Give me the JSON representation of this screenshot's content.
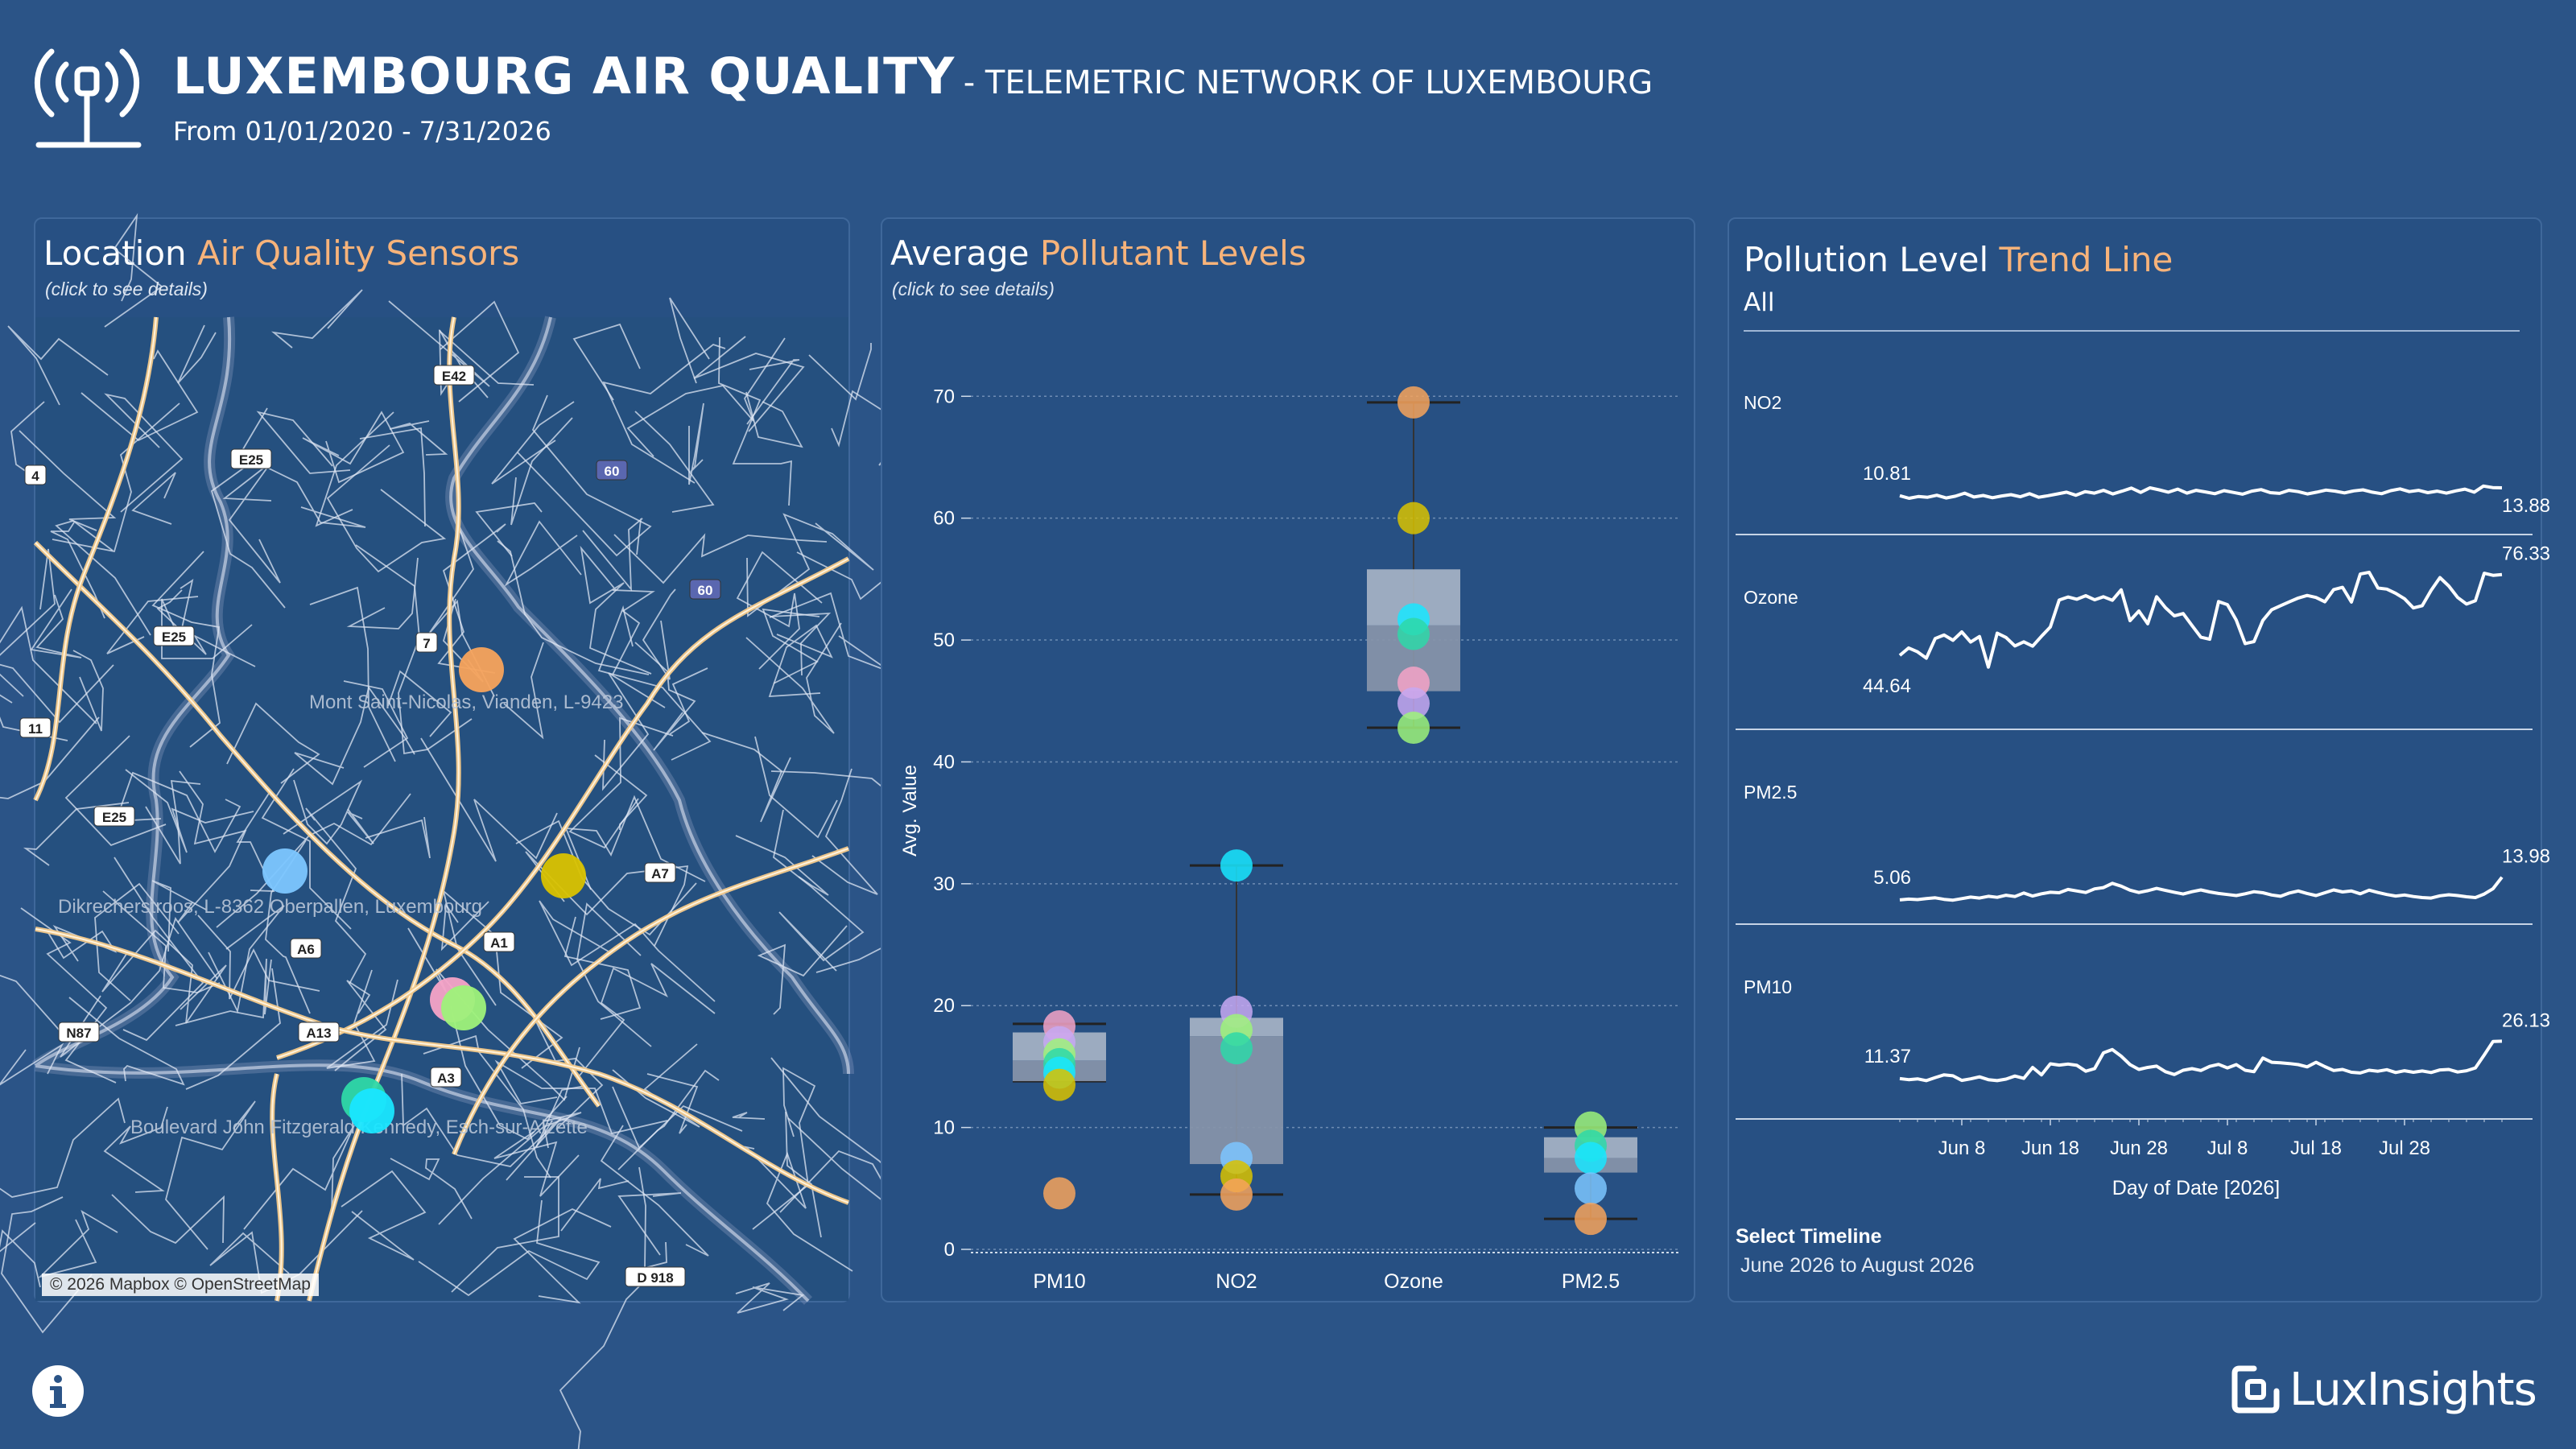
{
  "header": {
    "title": "LUXEMBOURG AIR QUALITY",
    "subtitle": "- TELEMETRIC NETWORK OF LUXEMBOURG",
    "date_range": "From 01/01/2020 - 7/31/2026",
    "icon": "antenna-broadcast-icon"
  },
  "map_panel": {
    "title_a": "Location",
    "title_b": "Air Quality Sensors",
    "hint": "(click to see details)",
    "labels": [
      "Mont Saint-Nicolas, Vianden, L-9423",
      "Dikrecherstroos, L-8362 Oberpallen, Luxembourg",
      "Boulevard John Fitzgerald Kennedy, Esch-sur-Alzette"
    ],
    "road_shields": [
      "E42",
      "E25",
      "60",
      "60",
      "E25",
      "7",
      "E25",
      "A7",
      "A6",
      "A1",
      "N87",
      "A13",
      "A3",
      "D 918",
      "4",
      "11"
    ],
    "attribution": "© 2026 Mapbox © OpenStreetMap"
  },
  "box_panel": {
    "title_a": "Average",
    "title_b": "Pollutant Levels",
    "hint": "(click to see details)"
  },
  "trend_panel": {
    "title_a": "Pollution Level",
    "title_b": "Trend Line",
    "filter_value": "All",
    "select_label": "Select Timeline",
    "select_value": "June 2026 to August 2026"
  },
  "footer": {
    "logo_text": "LuxInsights",
    "info_icon": "info-icon"
  },
  "colors": {
    "background": "#2b5487",
    "accent": "#f7b37a",
    "sensor_colors": [
      "#f7a35c",
      "#d9c200",
      "#7cc6ff",
      "#f5a3c7",
      "#9ef27a",
      "#19e6ff",
      "#2ed8a8",
      "#c7a8f2"
    ]
  },
  "chart_data": [
    {
      "type": "scatter",
      "title": "Location Air Quality Sensors",
      "description_values": "sensor markers on map",
      "series": [
        {
          "name": "",
          "color": "#f7a35c",
          "values": [
            1
          ]
        },
        {
          "name": "",
          "color": "#d9c200",
          "values": [
            1
          ]
        },
        {
          "name": "",
          "color": "#7cc6ff",
          "values": [
            1
          ]
        },
        {
          "name": "",
          "color": "#f5a3c7",
          "values": [
            1
          ]
        },
        {
          "name": "",
          "color": "#9ef27a",
          "values": [
            1
          ]
        },
        {
          "name": "",
          "color": "#2ed8a8",
          "values": [
            1
          ]
        },
        {
          "name": "",
          "color": "#19e6ff",
          "values": [
            1
          ]
        }
      ]
    },
    {
      "type": "box",
      "title": "Average Pollutant Levels",
      "ylabel": "Avg. Value",
      "ylim": [
        0,
        72
      ],
      "yticks": [
        0,
        10,
        20,
        30,
        40,
        50,
        60,
        70
      ],
      "categories": [
        "PM10",
        "NO2",
        "Ozone",
        "PM2.5"
      ],
      "boxes": [
        {
          "q1": 13.8,
          "median": 15.5,
          "q3": 17.8,
          "whisker_low": 13.8,
          "whisker_high": 18.5
        },
        {
          "q1": 7.0,
          "median": 17.5,
          "q3": 19.0,
          "whisker_low": 4.5,
          "whisker_high": 31.5
        },
        {
          "q1": 45.8,
          "median": 51.2,
          "q3": 55.8,
          "whisker_low": 42.8,
          "whisker_high": 69.5
        },
        {
          "q1": 6.3,
          "median": 7.5,
          "q3": 9.2,
          "whisker_low": 2.5,
          "whisker_high": 10.0
        }
      ],
      "points": [
        {
          "category": "PM10",
          "values": [
            18.3,
            17.0,
            16.0,
            15.2,
            14.5,
            13.5,
            4.6
          ],
          "colors": [
            "#f5a3c7",
            "#c7a8f2",
            "#9ef27a",
            "#2ed8a8",
            "#19e6ff",
            "#d9c200",
            "#f7a35c"
          ]
        },
        {
          "category": "NO2",
          "values": [
            31.5,
            19.5,
            18.0,
            16.5,
            7.5,
            6.0,
            4.5
          ],
          "colors": [
            "#19e6ff",
            "#c7a8f2",
            "#9ef27a",
            "#2ed8a8",
            "#7cc6ff",
            "#d9c200",
            "#f7a35c"
          ]
        },
        {
          "category": "Ozone",
          "values": [
            69.5,
            60.0,
            51.7,
            50.5,
            46.5,
            44.8,
            42.8
          ],
          "colors": [
            "#f7a35c",
            "#d9c200",
            "#19e6ff",
            "#2ed8a8",
            "#f5a3c7",
            "#c7a8f2",
            "#9ef27a"
          ]
        },
        {
          "category": "PM2.5",
          "values": [
            10.0,
            8.5,
            7.5,
            5.0,
            2.5
          ],
          "colors": [
            "#9ef27a",
            "#2ed8a8",
            "#19e6ff",
            "#7cc6ff",
            "#f7a35c"
          ]
        }
      ]
    },
    {
      "type": "line",
      "title": "Pollution Level Trend Line",
      "xlabel": "Day of Date [2026]",
      "x_ticks": [
        "Jun 8",
        "Jun 18",
        "Jun 28",
        "Jul 8",
        "Jul 18",
        "Jul 28"
      ],
      "x_start": "2026-06-01",
      "series": [
        {
          "name": "NO2",
          "start_label": "10.81",
          "end_label": "13.88",
          "values": [
            10.8,
            9.8,
            10.5,
            10.2,
            11.0,
            9.9,
            10.6,
            11.8,
            10.3,
            10.9,
            10.0,
            10.7,
            11.2,
            10.4,
            11.6,
            10.2,
            10.8,
            11.5,
            12.2,
            11.0,
            12.4,
            11.8,
            12.9,
            11.5,
            12.6,
            13.8,
            12.1,
            13.9,
            13.1,
            12.2,
            13.4,
            11.8,
            12.9,
            12.3,
            11.6,
            12.8,
            12.1,
            11.4,
            12.6,
            13.2,
            12.0,
            11.7,
            12.9,
            12.4,
            11.5,
            12.2,
            13.0,
            12.6,
            11.9,
            12.7,
            13.1,
            12.2,
            11.6,
            12.8,
            13.5,
            12.4,
            12.9,
            12.0,
            12.6,
            11.8,
            12.7,
            13.4,
            12.2,
            14.6,
            14.0,
            13.9
          ]
        },
        {
          "name": "Ozone",
          "start_label": "44.64",
          "end_label": "76.33",
          "values": [
            44.6,
            47.5,
            46.0,
            43.5,
            51.2,
            52.6,
            50.5,
            53.8,
            49.8,
            52.0,
            40.0,
            53.3,
            51.6,
            48.3,
            49.9,
            48.2,
            52.1,
            55.7,
            66.3,
            67.5,
            66.6,
            68.0,
            66.4,
            67.6,
            66.2,
            70.3,
            58.2,
            62.0,
            57.0,
            67.6,
            63.3,
            60.1,
            61.0,
            56.3,
            51.7,
            50.9,
            65.7,
            64.5,
            58.4,
            49.2,
            50.0,
            58.3,
            62.5,
            64.1,
            65.6,
            67.1,
            68.1,
            67.3,
            65.6,
            70.4,
            71.3,
            65.5,
            76.5,
            77.2,
            71.0,
            70.6,
            68.9,
            66.8,
            63.2,
            64.1,
            70.1,
            75.1,
            71.8,
            67.3,
            64.7,
            66.0,
            76.8,
            76.0,
            76.3
          ]
        },
        {
          "name": "PM2.5",
          "start_label": "5.06",
          "end_label": "13.98",
          "values": [
            5.1,
            5.4,
            5.2,
            5.6,
            5.9,
            5.3,
            5.0,
            5.6,
            6.2,
            5.8,
            6.5,
            6.1,
            6.9,
            6.4,
            7.8,
            6.6,
            7.5,
            8.1,
            7.9,
            9.2,
            8.6,
            8.0,
            9.4,
            9.9,
            11.6,
            10.5,
            8.9,
            8.0,
            8.7,
            9.6,
            8.8,
            8.1,
            7.4,
            8.3,
            9.0,
            8.2,
            7.6,
            7.2,
            6.8,
            7.5,
            8.3,
            7.9,
            7.0,
            6.5,
            7.8,
            8.6,
            7.6,
            6.8,
            7.9,
            9.0,
            8.2,
            8.6,
            7.5,
            8.9,
            8.0,
            7.2,
            6.6,
            7.0,
            6.4,
            6.0,
            5.8,
            6.7,
            7.1,
            6.8,
            6.3,
            6.0,
            7.4,
            9.5,
            14.0
          ]
        },
        {
          "name": "PM10",
          "start_label": "11.37",
          "end_label": "26.13",
          "values": [
            11.4,
            11.0,
            11.3,
            10.6,
            11.8,
            12.9,
            12.5,
            10.7,
            11.3,
            12.1,
            11.0,
            10.6,
            11.2,
            12.4,
            11.5,
            15.8,
            12.9,
            17.2,
            16.7,
            17.1,
            16.6,
            14.3,
            15.3,
            21.5,
            22.8,
            20.2,
            16.9,
            15.0,
            15.8,
            16.3,
            14.1,
            13.0,
            14.7,
            15.3,
            14.6,
            16.2,
            17.0,
            15.6,
            16.9,
            14.7,
            14.1,
            19.5,
            17.8,
            17.6,
            17.3,
            16.9,
            16.0,
            17.8,
            16.1,
            14.6,
            15.0,
            13.9,
            13.6,
            14.7,
            14.3,
            14.9,
            13.8,
            14.5,
            13.9,
            14.4,
            13.8,
            14.8,
            15.0,
            14.0,
            14.5,
            15.6,
            20.7,
            26.0,
            26.1
          ]
        }
      ]
    }
  ]
}
